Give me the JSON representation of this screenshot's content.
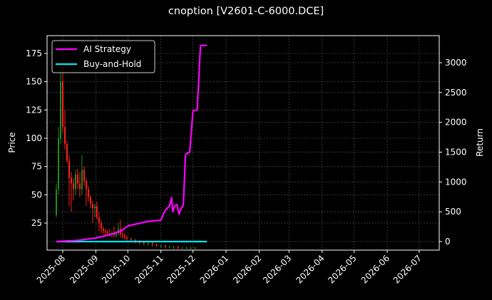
{
  "title": "cnoption [V2601-C-6000.DCE]",
  "colors": {
    "background": "#000000",
    "strategy": "#ff00ff",
    "buy_hold": "#00e5ee",
    "up_candle": "#228b22",
    "down_candle": "#ff2020",
    "grid": "#444444",
    "axis": "#ffffff"
  },
  "chart_data": {
    "type": "line",
    "title": "cnoption [V2601-C-6000.DCE]",
    "xlabel": "",
    "ylabel": "Price",
    "ylabel_right": "Return",
    "grid": true,
    "legend_position": "upper left",
    "legend": [
      "AI Strategy",
      "Buy-and-Hold"
    ],
    "x_ticks": [
      "2025-08",
      "2025-09",
      "2025-10",
      "2025-11",
      "2025-12",
      "2026-01",
      "2026-02",
      "2026-03",
      "2026-04",
      "2026-05",
      "2026-06",
      "2026-07"
    ],
    "y_left_ticks": [
      25,
      50,
      75,
      100,
      125,
      150,
      175
    ],
    "y_right_ticks": [
      0,
      500,
      1000,
      1500,
      2000,
      2500,
      3000
    ],
    "y_left_range": [
      2,
      189
    ],
    "y_right_range": [
      -150,
      3440
    ],
    "candles": {
      "x": [
        "2025-07-26",
        "2025-07-28",
        "2025-07-30",
        "2025-08-01",
        "2025-08-03",
        "2025-08-05",
        "2025-08-07",
        "2025-08-09",
        "2025-08-11",
        "2025-08-13",
        "2025-08-15",
        "2025-08-17",
        "2025-08-19",
        "2025-08-21",
        "2025-08-23",
        "2025-08-25",
        "2025-08-27",
        "2025-08-29",
        "2025-08-31",
        "2025-09-02",
        "2025-09-04",
        "2025-09-06",
        "2025-09-08",
        "2025-09-10",
        "2025-09-12",
        "2025-09-14",
        "2025-09-16",
        "2025-09-18",
        "2025-09-20",
        "2025-09-22",
        "2025-09-24",
        "2025-09-26",
        "2025-09-28",
        "2025-09-30",
        "2025-10-04",
        "2025-10-08",
        "2025-10-12",
        "2025-10-16",
        "2025-10-20",
        "2025-10-24",
        "2025-10-28",
        "2025-11-01",
        "2025-11-05",
        "2025-11-09",
        "2025-11-13",
        "2025-11-17",
        "2025-11-21",
        "2025-11-25",
        "2025-11-29",
        "2025-12-03"
      ],
      "open": [
        32,
        55,
        100,
        150,
        110,
        95,
        80,
        65,
        60,
        55,
        68,
        60,
        55,
        72,
        62,
        55,
        48,
        42,
        38,
        40,
        30,
        25,
        20,
        18,
        17,
        16,
        15,
        15,
        14,
        16,
        20,
        15,
        14,
        12,
        11,
        10,
        9,
        8,
        7,
        7,
        6,
        5,
        5,
        4,
        4,
        4,
        3,
        3,
        3,
        3
      ],
      "high": [
        60,
        110,
        160,
        175,
        125,
        98,
        85,
        70,
        65,
        72,
        73,
        70,
        85,
        75,
        65,
        58,
        50,
        45,
        42,
        44,
        35,
        28,
        22,
        20,
        19,
        20,
        18,
        22,
        18,
        25,
        28,
        18,
        16,
        14,
        12,
        11,
        10,
        9,
        8,
        8,
        7,
        6,
        6,
        5,
        5,
        5,
        4,
        4,
        4,
        4
      ],
      "close": [
        55,
        100,
        150,
        110,
        95,
        80,
        65,
        60,
        55,
        68,
        60,
        55,
        72,
        62,
        55,
        48,
        42,
        38,
        40,
        30,
        25,
        20,
        18,
        17,
        16,
        15,
        15,
        14,
        16,
        20,
        15,
        14,
        12,
        11,
        10,
        9,
        8,
        7,
        7,
        6,
        5,
        5,
        4,
        4,
        4,
        3,
        3,
        3,
        3,
        3
      ],
      "low": [
        30,
        50,
        95,
        105,
        90,
        78,
        40,
        35,
        45,
        50,
        55,
        48,
        50,
        58,
        40,
        44,
        38,
        25,
        30,
        28,
        18,
        16,
        15,
        14,
        14,
        13,
        12,
        12,
        12,
        14,
        12,
        11,
        10,
        9,
        8,
        7,
        6,
        5,
        5,
        4,
        4,
        3,
        3,
        3,
        2,
        2,
        2,
        2,
        2,
        2
      ]
    },
    "series": [
      {
        "name": "AI Strategy",
        "axis": "right",
        "x": [
          "2025-07-26",
          "2025-08-15",
          "2025-09-01",
          "2025-09-15",
          "2025-09-25",
          "2025-10-01",
          "2025-10-10",
          "2025-10-20",
          "2025-10-28",
          "2025-11-01",
          "2025-11-03",
          "2025-11-05",
          "2025-11-07",
          "2025-11-09",
          "2025-11-11",
          "2025-11-12",
          "2025-11-14",
          "2025-11-16",
          "2025-11-18",
          "2025-11-20",
          "2025-11-22",
          "2025-11-24",
          "2025-11-25",
          "2025-11-26",
          "2025-11-28",
          "2025-12-01",
          "2025-12-02",
          "2025-12-03",
          "2025-12-05",
          "2025-12-08",
          "2025-12-09",
          "2025-12-14"
        ],
        "values": [
          0,
          20,
          60,
          120,
          180,
          260,
          300,
          340,
          350,
          360,
          450,
          520,
          560,
          600,
          740,
          500,
          600,
          620,
          460,
          560,
          610,
          1450,
          1480,
          1480,
          1500,
          2190,
          2200,
          2200,
          2210,
          3280,
          3290,
          3290
        ]
      },
      {
        "name": "Buy-and-Hold",
        "axis": "right",
        "x": [
          "2025-07-26",
          "2025-12-14"
        ],
        "values": [
          0,
          0
        ]
      }
    ]
  },
  "legend": {
    "items": [
      {
        "label": "AI Strategy",
        "color": "#ff00ff"
      },
      {
        "label": "Buy-and-Hold",
        "color": "#00e5ee"
      }
    ]
  },
  "axes": {
    "left_label": "Price",
    "right_label": "Return",
    "left_ticks": [
      "25",
      "50",
      "75",
      "100",
      "125",
      "150",
      "175"
    ],
    "right_ticks": [
      "0",
      "500",
      "1000",
      "1500",
      "2000",
      "2500",
      "3000"
    ],
    "x_ticks": [
      "2025-08",
      "2025-09",
      "2025-10",
      "2025-11",
      "2025-12",
      "2026-01",
      "2026-02",
      "2026-03",
      "2026-04",
      "2026-05",
      "2026-06",
      "2026-07"
    ]
  }
}
